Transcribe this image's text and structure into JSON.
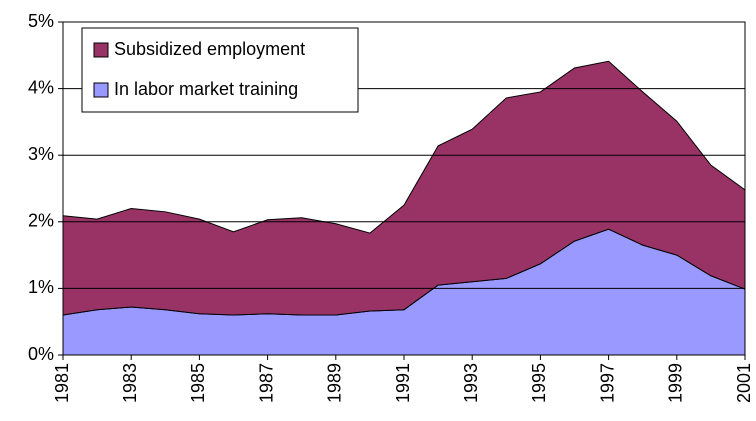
{
  "chart_data": {
    "type": "stacked_area",
    "x": [
      1981,
      1982,
      1983,
      1984,
      1985,
      1986,
      1987,
      1988,
      1989,
      1990,
      1991,
      1992,
      1993,
      1994,
      1995,
      1996,
      1997,
      1998,
      1999,
      2000,
      2001
    ],
    "series": [
      {
        "name": "In labor market training",
        "color": "#9999ff",
        "values": [
          0.6,
          0.68,
          0.72,
          0.68,
          0.62,
          0.6,
          0.62,
          0.6,
          0.6,
          0.66,
          0.68,
          1.05,
          1.1,
          1.15,
          1.37,
          1.71,
          1.89,
          1.65,
          1.5,
          1.19,
          0.99
        ]
      },
      {
        "name": "Subsidized employment",
        "color": "#993366",
        "values": [
          1.49,
          1.36,
          1.48,
          1.47,
          1.42,
          1.25,
          1.41,
          1.46,
          1.37,
          1.17,
          1.57,
          2.09,
          2.29,
          2.71,
          2.58,
          2.6,
          2.52,
          2.3,
          2.01,
          1.66,
          1.49
        ]
      }
    ],
    "xlim": [
      1981,
      2001
    ],
    "xticks": [
      1981,
      1983,
      1985,
      1987,
      1989,
      1991,
      1993,
      1995,
      1997,
      1999,
      2001
    ],
    "ylim": [
      0,
      5
    ],
    "yticks": [
      {
        "value": 0,
        "label": "0%"
      },
      {
        "value": 1,
        "label": "1%"
      },
      {
        "value": 2,
        "label": "2%"
      },
      {
        "value": 3,
        "label": "3%"
      },
      {
        "value": 4,
        "label": "4%"
      },
      {
        "value": 5,
        "label": "5%"
      }
    ],
    "grid": true,
    "legend": "top-left"
  }
}
